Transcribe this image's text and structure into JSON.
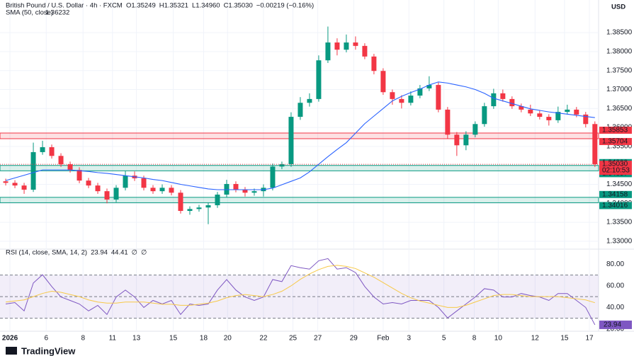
{
  "header": {
    "symbol": "British Pound / U.S. Dollar · 4h · FXCM",
    "ohlc": [
      "O1.35249",
      "H1.35321",
      "L1.34960",
      "C1.35030",
      "−0.00219 (−0.16%)"
    ],
    "currency": "USD",
    "logo": "TradingView"
  },
  "chart_data": [
    {
      "type": "candlestick",
      "x": [
        0,
        1,
        2,
        3,
        4,
        5,
        6,
        7,
        8,
        9,
        10,
        11,
        12,
        13,
        14,
        15,
        16,
        17,
        18,
        19,
        20,
        21,
        22,
        23,
        24,
        25,
        26,
        27,
        28,
        29,
        30,
        31,
        32,
        33,
        34,
        35,
        36,
        37,
        38,
        39,
        40,
        41,
        42,
        43,
        44,
        45,
        46,
        47,
        48,
        49,
        50,
        51,
        52,
        53,
        54,
        55,
        56,
        57,
        58,
        59,
        60,
        61,
        62,
        63,
        64
      ],
      "open": [
        1.3458,
        1.3454,
        1.3447,
        1.3436,
        1.3535,
        1.3548,
        1.3525,
        1.3503,
        1.3488,
        1.346,
        1.3447,
        1.3432,
        1.341,
        1.3441,
        1.3473,
        1.3466,
        1.3441,
        1.3432,
        1.3441,
        1.3428,
        1.338,
        1.3385,
        1.3389,
        1.3395,
        1.3423,
        1.3451,
        1.3436,
        1.3428,
        1.3432,
        1.3441,
        1.3497,
        1.3503,
        1.3628,
        1.3665,
        1.3675,
        1.3777,
        1.3824,
        1.3805,
        1.3824,
        1.3815,
        1.3787,
        1.3749,
        1.3693,
        1.3675,
        1.3665,
        1.3684,
        1.3703,
        1.3712,
        1.3647,
        1.3581,
        1.3553,
        1.3581,
        1.3609,
        1.3656,
        1.369,
        1.3675,
        1.3656,
        1.3647,
        1.3637,
        1.3628,
        1.3619,
        1.3641,
        1.3647,
        1.3634,
        1.3609
      ],
      "high": [
        1.3465,
        1.3461,
        1.3454,
        1.356,
        1.3565,
        1.3555,
        1.3532,
        1.351,
        1.3495,
        1.3467,
        1.3454,
        1.3439,
        1.3448,
        1.3485,
        1.3484,
        1.3473,
        1.3448,
        1.345,
        1.3448,
        1.3435,
        1.3392,
        1.3396,
        1.3402,
        1.343,
        1.3462,
        1.3458,
        1.3443,
        1.3439,
        1.345,
        1.3505,
        1.351,
        1.364,
        1.368,
        1.369,
        1.379,
        1.3866,
        1.3835,
        1.3845,
        1.384,
        1.3822,
        1.3794,
        1.3756,
        1.37,
        1.3685,
        1.3695,
        1.3712,
        1.3735,
        1.3719,
        1.3654,
        1.3588,
        1.359,
        1.3616,
        1.3665,
        1.3702,
        1.37,
        1.3682,
        1.3663,
        1.366,
        1.3644,
        1.3635,
        1.3655,
        1.366,
        1.3654,
        1.3641,
        1.3616
      ],
      "low": [
        1.3447,
        1.344,
        1.3425,
        1.343,
        1.3528,
        1.3518,
        1.3496,
        1.3481,
        1.3453,
        1.344,
        1.3425,
        1.34,
        1.3403,
        1.3434,
        1.3459,
        1.3434,
        1.3425,
        1.3425,
        1.3421,
        1.3373,
        1.337,
        1.3378,
        1.3345,
        1.3388,
        1.3416,
        1.3429,
        1.3418,
        1.342,
        1.3418,
        1.3434,
        1.349,
        1.3496,
        1.362,
        1.3655,
        1.3668,
        1.377,
        1.379,
        1.3798,
        1.3805,
        1.378,
        1.374,
        1.3686,
        1.366,
        1.365,
        1.3658,
        1.3677,
        1.3696,
        1.364,
        1.357,
        1.3525,
        1.354,
        1.3574,
        1.3602,
        1.3649,
        1.3668,
        1.3649,
        1.364,
        1.363,
        1.3621,
        1.3605,
        1.3612,
        1.3634,
        1.3627,
        1.36,
        1.3496
      ],
      "close": [
        1.3454,
        1.3447,
        1.3436,
        1.3535,
        1.3548,
        1.3525,
        1.3503,
        1.3488,
        1.346,
        1.3447,
        1.3432,
        1.341,
        1.3441,
        1.3473,
        1.3466,
        1.3441,
        1.3432,
        1.3441,
        1.3428,
        1.338,
        1.3385,
        1.3389,
        1.3395,
        1.3423,
        1.3451,
        1.3436,
        1.3428,
        1.3432,
        1.3441,
        1.3497,
        1.3503,
        1.3628,
        1.3665,
        1.3675,
        1.3777,
        1.3824,
        1.3805,
        1.3824,
        1.3815,
        1.3787,
        1.3749,
        1.3693,
        1.3675,
        1.3665,
        1.3684,
        1.3703,
        1.3712,
        1.3647,
        1.3581,
        1.3553,
        1.3581,
        1.3609,
        1.3656,
        1.369,
        1.3675,
        1.3656,
        1.3647,
        1.3637,
        1.3628,
        1.3619,
        1.3641,
        1.3647,
        1.3634,
        1.3609,
        1.3503
      ],
      "up_color": "#089981",
      "down_color": "#f23645",
      "series": [
        {
          "name": "SMA (50, close)",
          "color": "#2962ff",
          "last_value": 1.36232,
          "values": [
            1.346,
            1.3467,
            1.3474,
            1.3481,
            1.3488,
            1.3488,
            1.3488,
            1.3488,
            1.3486,
            1.3484,
            1.3481,
            1.3479,
            1.3476,
            1.3473,
            1.347,
            1.3467,
            1.3463,
            1.346,
            1.3455,
            1.345,
            1.3446,
            1.3442,
            1.3438,
            1.3436,
            1.3436,
            1.3436,
            1.3436,
            1.3436,
            1.3436,
            1.344,
            1.3449,
            1.3458,
            1.3467,
            1.3483,
            1.3503,
            1.3523,
            1.3542,
            1.356,
            1.3585,
            1.361,
            1.363,
            1.365,
            1.367,
            1.3682,
            1.3692,
            1.3701,
            1.3712,
            1.372,
            1.3717,
            1.3712,
            1.3707,
            1.37,
            1.369,
            1.3677,
            1.367,
            1.3663,
            1.3656,
            1.3649,
            1.3645,
            1.3641,
            1.3638,
            1.3635,
            1.3632,
            1.3629,
            1.3626
          ]
        }
      ],
      "zones": [
        {
          "from": 1.35704,
          "to": 1.35853,
          "color": "#f23645"
        },
        {
          "from": 1.34857,
          "to": 1.34999,
          "color": "#089981"
        },
        {
          "from": 1.34016,
          "to": 1.34158,
          "color": "#089981"
        }
      ],
      "last_price": {
        "value": 1.3503,
        "label": "1.35030"
      },
      "countdown": "02:10:53",
      "xlim": [
        -0.62,
        64.4
      ],
      "xticks": [
        {
          "value": 0.46,
          "label": "2026"
        },
        {
          "value": 4.4,
          "label": "6"
        },
        {
          "value": 8.4,
          "label": "8"
        },
        {
          "value": 11.6,
          "label": "11"
        },
        {
          "value": 14.2,
          "label": "13"
        },
        {
          "value": 18.2,
          "label": "15"
        },
        {
          "value": 21.5,
          "label": "18"
        },
        {
          "value": 24.1,
          "label": "20"
        },
        {
          "value": 28,
          "label": "22"
        },
        {
          "value": 31.2,
          "label": "25"
        },
        {
          "value": 33.9,
          "label": "27"
        },
        {
          "value": 37.8,
          "label": "29"
        },
        {
          "value": 41,
          "label": "Feb"
        },
        {
          "value": 43.8,
          "label": "3"
        },
        {
          "value": 47.6,
          "label": "5"
        },
        {
          "value": 50.9,
          "label": "8"
        },
        {
          "value": 53.5,
          "label": "10"
        },
        {
          "value": 57.5,
          "label": "12"
        },
        {
          "value": 60.7,
          "label": "15"
        },
        {
          "value": 63.4,
          "label": "17"
        }
      ],
      "ylim": [
        1.3283,
        1.3936
      ],
      "yticks": [
        {
          "value": 1.385,
          "label": "1.38500"
        },
        {
          "value": 1.38,
          "label": "1.38000"
        },
        {
          "value": 1.375,
          "label": "1.37500"
        },
        {
          "value": 1.37,
          "label": "1.37000"
        },
        {
          "value": 1.365,
          "label": "1.36500"
        },
        {
          "value": 1.36,
          "label": "1.36000"
        },
        {
          "value": 1.355,
          "label": "1.35500"
        },
        {
          "value": 1.35,
          "label": "1.35000"
        },
        {
          "value": 1.345,
          "label": "1.34500"
        },
        {
          "value": 1.34,
          "label": "1.34000"
        },
        {
          "value": 1.335,
          "label": "1.33500"
        },
        {
          "value": 1.33,
          "label": "1.33000"
        }
      ],
      "grid": true
    },
    {
      "type": "line",
      "title": "RSI (14, close, SMA, 14, 2)",
      "extra_labels": [
        "∅",
        "∅"
      ],
      "series": [
        {
          "name": "RSI",
          "color": "#7e57c2",
          "values": [
            43.2,
            44.5,
            36.8,
            62.6,
            70.3,
            59.4,
            49.7,
            46.5,
            43.2,
            36.8,
            41.9,
            33.5,
            49.7,
            56.1,
            49.7,
            40,
            46.5,
            43.2,
            46.5,
            33.5,
            43.2,
            41.9,
            43.2,
            56.1,
            65.8,
            56.1,
            49.7,
            46.5,
            49.7,
            65.8,
            63.9,
            78.7,
            76.8,
            75.5,
            83.2,
            85.2,
            75.5,
            76.8,
            72.3,
            59.4,
            49.7,
            43.2,
            44.5,
            43.2,
            46.5,
            46.5,
            46.5,
            40,
            30.3,
            36.8,
            43.2,
            49.7,
            57.4,
            56.1,
            49.7,
            49.7,
            52.9,
            51,
            49.7,
            46.5,
            52.9,
            52.9,
            46.5,
            40,
            23.94
          ]
        },
        {
          "name": "RSI-based MA",
          "color": "#f7c948",
          "values": [
            45,
            46,
            47,
            50,
            53,
            55,
            54,
            52,
            50,
            47,
            45,
            44,
            44,
            45,
            45,
            45,
            44,
            43,
            43,
            42,
            42,
            43,
            44,
            46,
            49,
            51,
            52,
            51,
            50,
            52,
            55,
            60,
            66,
            71,
            75,
            78,
            79,
            78,
            76,
            72,
            68,
            63,
            58,
            53,
            49,
            46,
            44,
            42,
            40,
            40,
            42,
            45,
            48,
            51,
            52,
            52,
            51,
            50,
            50,
            50,
            50,
            49,
            48,
            47,
            44.41
          ]
        }
      ],
      "band": [
        30,
        70
      ],
      "levels": [
        70,
        50,
        30
      ],
      "band_color": "#7e57c2",
      "xlim": [
        -0.62,
        64.4
      ],
      "ylim": [
        18,
        92
      ],
      "yticks": [
        {
          "value": 80,
          "label": "80.00"
        },
        {
          "value": 60,
          "label": "60.00"
        },
        {
          "value": 40,
          "label": "40.00"
        },
        {
          "value": 20,
          "label": "20.00"
        }
      ],
      "grid": true
    }
  ]
}
